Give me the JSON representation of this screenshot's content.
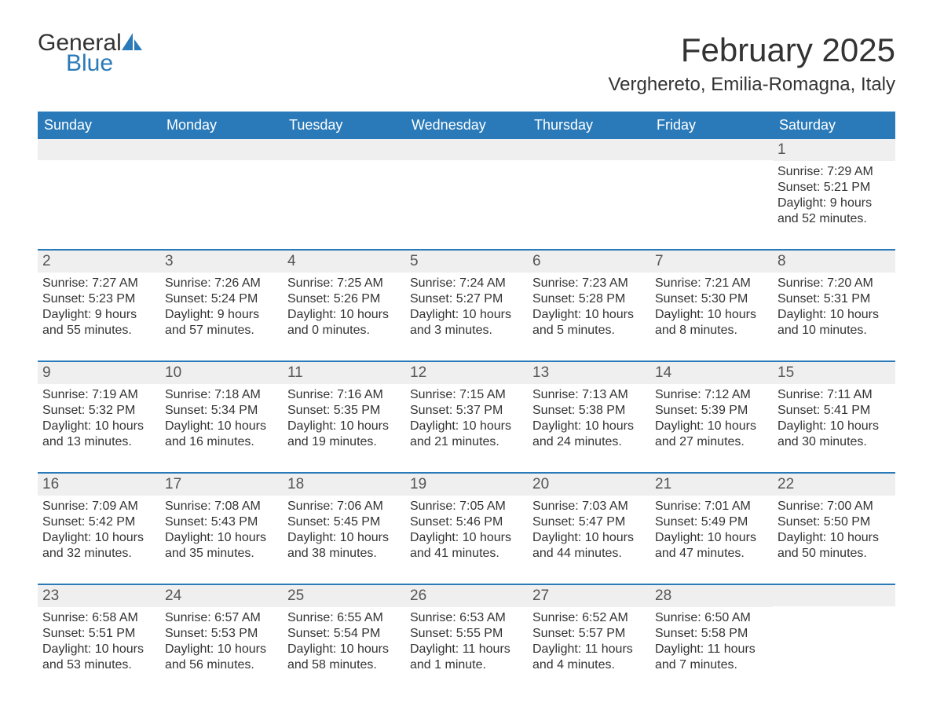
{
  "brand": {
    "name1": "General",
    "name2": "Blue"
  },
  "title": "February 2025",
  "location": "Verghereto, Emilia-Romagna, Italy",
  "colors": {
    "header_bg": "#2a7ab9",
    "row_accent": "#2a7ab9",
    "daynum_bg": "#efefef",
    "text": "#333333",
    "page_bg": "#ffffff"
  },
  "typography": {
    "title_fontsize": 42,
    "location_fontsize": 24,
    "dayheader_fontsize": 18,
    "daynum_fontsize": 19,
    "body_fontsize": 16
  },
  "day_headers": [
    "Sunday",
    "Monday",
    "Tuesday",
    "Wednesday",
    "Thursday",
    "Friday",
    "Saturday"
  ],
  "weeks": [
    [
      {
        "empty": true
      },
      {
        "empty": true
      },
      {
        "empty": true
      },
      {
        "empty": true
      },
      {
        "empty": true
      },
      {
        "empty": true
      },
      {
        "day": "1",
        "sunrise": "Sunrise: 7:29 AM",
        "sunset": "Sunset: 5:21 PM",
        "daylight": "Daylight: 9 hours and 52 minutes."
      }
    ],
    [
      {
        "day": "2",
        "sunrise": "Sunrise: 7:27 AM",
        "sunset": "Sunset: 5:23 PM",
        "daylight": "Daylight: 9 hours and 55 minutes."
      },
      {
        "day": "3",
        "sunrise": "Sunrise: 7:26 AM",
        "sunset": "Sunset: 5:24 PM",
        "daylight": "Daylight: 9 hours and 57 minutes."
      },
      {
        "day": "4",
        "sunrise": "Sunrise: 7:25 AM",
        "sunset": "Sunset: 5:26 PM",
        "daylight": "Daylight: 10 hours and 0 minutes."
      },
      {
        "day": "5",
        "sunrise": "Sunrise: 7:24 AM",
        "sunset": "Sunset: 5:27 PM",
        "daylight": "Daylight: 10 hours and 3 minutes."
      },
      {
        "day": "6",
        "sunrise": "Sunrise: 7:23 AM",
        "sunset": "Sunset: 5:28 PM",
        "daylight": "Daylight: 10 hours and 5 minutes."
      },
      {
        "day": "7",
        "sunrise": "Sunrise: 7:21 AM",
        "sunset": "Sunset: 5:30 PM",
        "daylight": "Daylight: 10 hours and 8 minutes."
      },
      {
        "day": "8",
        "sunrise": "Sunrise: 7:20 AM",
        "sunset": "Sunset: 5:31 PM",
        "daylight": "Daylight: 10 hours and 10 minutes."
      }
    ],
    [
      {
        "day": "9",
        "sunrise": "Sunrise: 7:19 AM",
        "sunset": "Sunset: 5:32 PM",
        "daylight": "Daylight: 10 hours and 13 minutes."
      },
      {
        "day": "10",
        "sunrise": "Sunrise: 7:18 AM",
        "sunset": "Sunset: 5:34 PM",
        "daylight": "Daylight: 10 hours and 16 minutes."
      },
      {
        "day": "11",
        "sunrise": "Sunrise: 7:16 AM",
        "sunset": "Sunset: 5:35 PM",
        "daylight": "Daylight: 10 hours and 19 minutes."
      },
      {
        "day": "12",
        "sunrise": "Sunrise: 7:15 AM",
        "sunset": "Sunset: 5:37 PM",
        "daylight": "Daylight: 10 hours and 21 minutes."
      },
      {
        "day": "13",
        "sunrise": "Sunrise: 7:13 AM",
        "sunset": "Sunset: 5:38 PM",
        "daylight": "Daylight: 10 hours and 24 minutes."
      },
      {
        "day": "14",
        "sunrise": "Sunrise: 7:12 AM",
        "sunset": "Sunset: 5:39 PM",
        "daylight": "Daylight: 10 hours and 27 minutes."
      },
      {
        "day": "15",
        "sunrise": "Sunrise: 7:11 AM",
        "sunset": "Sunset: 5:41 PM",
        "daylight": "Daylight: 10 hours and 30 minutes."
      }
    ],
    [
      {
        "day": "16",
        "sunrise": "Sunrise: 7:09 AM",
        "sunset": "Sunset: 5:42 PM",
        "daylight": "Daylight: 10 hours and 32 minutes."
      },
      {
        "day": "17",
        "sunrise": "Sunrise: 7:08 AM",
        "sunset": "Sunset: 5:43 PM",
        "daylight": "Daylight: 10 hours and 35 minutes."
      },
      {
        "day": "18",
        "sunrise": "Sunrise: 7:06 AM",
        "sunset": "Sunset: 5:45 PM",
        "daylight": "Daylight: 10 hours and 38 minutes."
      },
      {
        "day": "19",
        "sunrise": "Sunrise: 7:05 AM",
        "sunset": "Sunset: 5:46 PM",
        "daylight": "Daylight: 10 hours and 41 minutes."
      },
      {
        "day": "20",
        "sunrise": "Sunrise: 7:03 AM",
        "sunset": "Sunset: 5:47 PM",
        "daylight": "Daylight: 10 hours and 44 minutes."
      },
      {
        "day": "21",
        "sunrise": "Sunrise: 7:01 AM",
        "sunset": "Sunset: 5:49 PM",
        "daylight": "Daylight: 10 hours and 47 minutes."
      },
      {
        "day": "22",
        "sunrise": "Sunrise: 7:00 AM",
        "sunset": "Sunset: 5:50 PM",
        "daylight": "Daylight: 10 hours and 50 minutes."
      }
    ],
    [
      {
        "day": "23",
        "sunrise": "Sunrise: 6:58 AM",
        "sunset": "Sunset: 5:51 PM",
        "daylight": "Daylight: 10 hours and 53 minutes."
      },
      {
        "day": "24",
        "sunrise": "Sunrise: 6:57 AM",
        "sunset": "Sunset: 5:53 PM",
        "daylight": "Daylight: 10 hours and 56 minutes."
      },
      {
        "day": "25",
        "sunrise": "Sunrise: 6:55 AM",
        "sunset": "Sunset: 5:54 PM",
        "daylight": "Daylight: 10 hours and 58 minutes."
      },
      {
        "day": "26",
        "sunrise": "Sunrise: 6:53 AM",
        "sunset": "Sunset: 5:55 PM",
        "daylight": "Daylight: 11 hours and 1 minute."
      },
      {
        "day": "27",
        "sunrise": "Sunrise: 6:52 AM",
        "sunset": "Sunset: 5:57 PM",
        "daylight": "Daylight: 11 hours and 4 minutes."
      },
      {
        "day": "28",
        "sunrise": "Sunrise: 6:50 AM",
        "sunset": "Sunset: 5:58 PM",
        "daylight": "Daylight: 11 hours and 7 minutes."
      },
      {
        "empty": true
      }
    ]
  ]
}
